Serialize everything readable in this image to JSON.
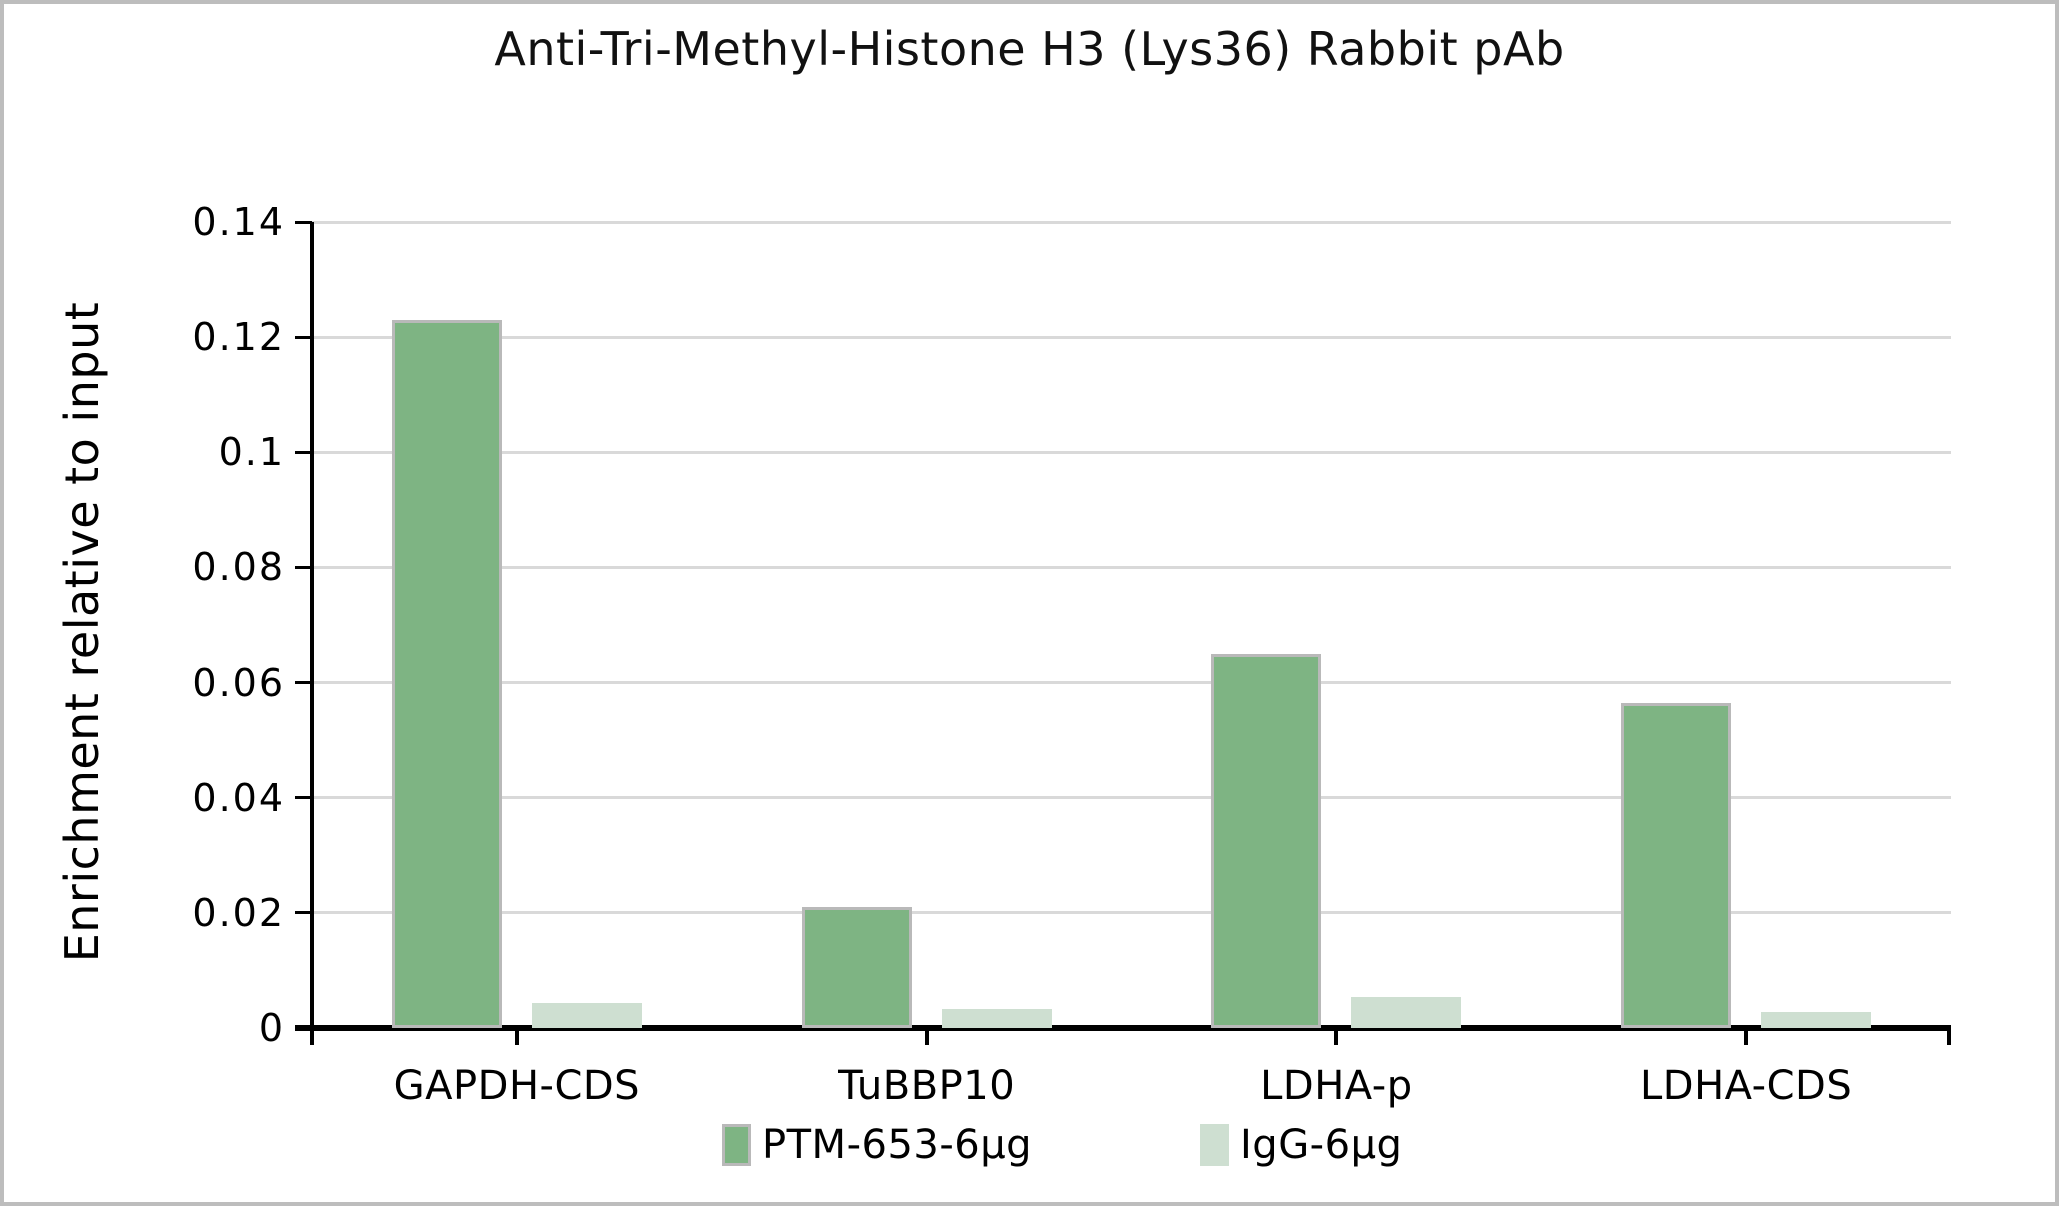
{
  "chart_data": {
    "type": "bar",
    "title": "Anti-Tri-Methyl-Histone H3 (Lys36) Rabbit pAb",
    "ylabel": "Enrichment relative to input",
    "xlabel": "",
    "categories": [
      "GAPDH-CDS",
      "TuBBP10",
      "LDHA-p",
      "LDHA-CDS"
    ],
    "series": [
      {
        "name": "PTM-653-6µg",
        "color": "#7eb483",
        "border_color": "#b9b9b9",
        "values": [
          0.123,
          0.021,
          0.065,
          0.0565
        ]
      },
      {
        "name": "IgG-6µg",
        "color": "#cedfd1",
        "border_color": "#cedfd1",
        "values": [
          0.0044,
          0.0033,
          0.0053,
          0.0027
        ]
      }
    ],
    "ylim": [
      0,
      0.14
    ],
    "yticks": [
      0,
      0.02,
      0.04,
      0.06,
      0.08,
      0.1,
      0.12,
      0.14
    ],
    "ytick_labels": [
      "0",
      "0.02",
      "0.04",
      "0.06",
      "0.08",
      "0.1",
      "0.12",
      "0.14"
    ],
    "grid": true,
    "gridline_color": "#d9d9d9",
    "legend_position": "bottom",
    "frame_color": "#bdbdbd",
    "axis_color": "#000000"
  }
}
